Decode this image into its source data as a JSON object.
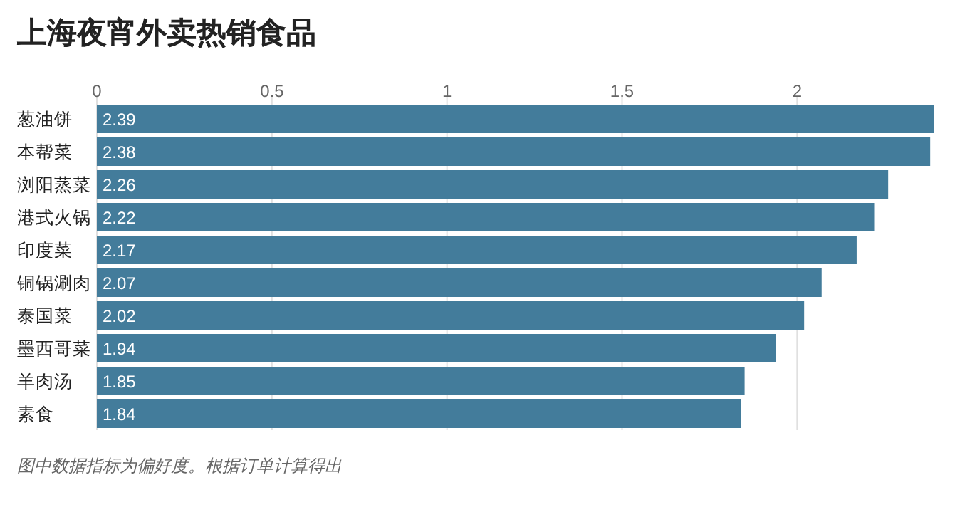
{
  "chart_data": {
    "type": "bar",
    "orientation": "horizontal",
    "title": "上海夜宵外卖热销食品",
    "categories": [
      "葱油饼",
      "本帮菜",
      "浏阳蒸菜",
      "港式火锅",
      "印度菜",
      "铜锅涮肉",
      "泰国菜",
      "墨西哥菜",
      "羊肉汤",
      "素食"
    ],
    "values": [
      2.39,
      2.38,
      2.26,
      2.22,
      2.17,
      2.07,
      2.02,
      1.94,
      1.85,
      1.84
    ],
    "color": "#437c9b",
    "xlim": [
      0,
      2.4
    ],
    "xticks": [
      0,
      0.5,
      1,
      1.5,
      2
    ],
    "grid": "x",
    "data_labels": true,
    "annotations": [
      "图中数据指标为偏好度。根据订单计算得出"
    ]
  }
}
